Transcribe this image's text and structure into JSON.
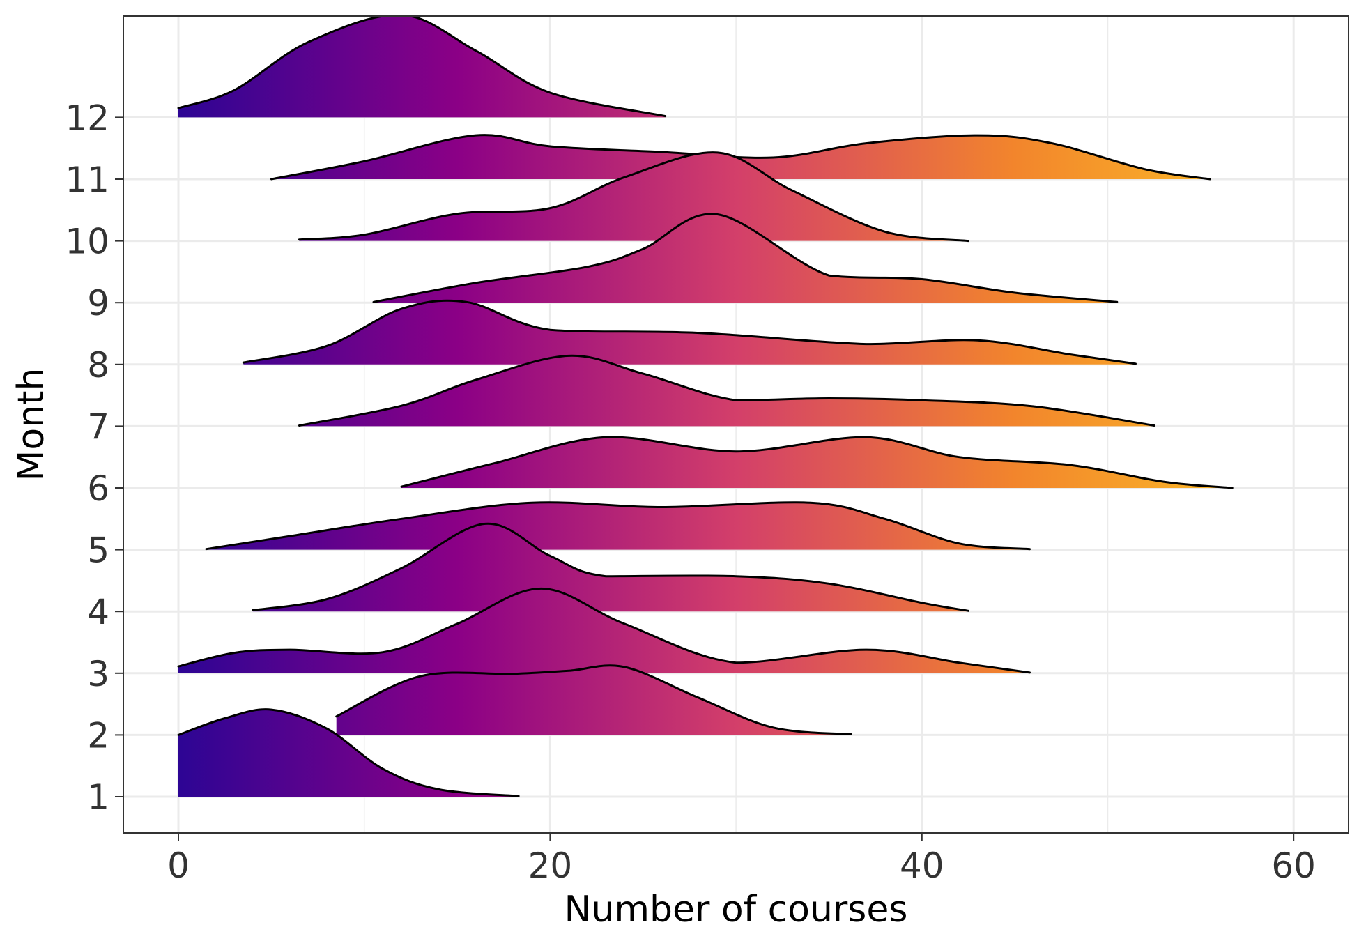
{
  "chart_data": {
    "type": "ridgeline",
    "title": "",
    "xlabel": "Number of courses",
    "ylabel": "Month",
    "xlim": [
      -1.5,
      63
    ],
    "xticks": [
      0,
      20,
      40,
      60
    ],
    "x_minor_ticks": [
      10,
      30,
      50
    ],
    "categories": [
      "1",
      "2",
      "3",
      "4",
      "5",
      "6",
      "7",
      "8",
      "9",
      "10",
      "11",
      "12"
    ],
    "grid": true,
    "legend": "none",
    "fill_gradient": [
      "#2d0594",
      "#8b0086",
      "#d33f6a",
      "#f2852c",
      "#fdc526"
    ],
    "series": [
      {
        "category": "1",
        "x": [
          0,
          2.5,
          5,
          8,
          11,
          14,
          18.3
        ],
        "density": [
          1.0,
          1.27,
          1.41,
          1.1,
          0.45,
          0.12,
          0.01
        ]
      },
      {
        "category": "2",
        "x": [
          8.5,
          13,
          18,
          21,
          24,
          28,
          32,
          36.2
        ],
        "density": [
          0.3,
          0.95,
          0.99,
          1.04,
          1.1,
          0.6,
          0.12,
          0.01
        ]
      },
      {
        "category": "3",
        "x": [
          0,
          3,
          6,
          11,
          15,
          19.5,
          24,
          30,
          37,
          42,
          45.8
        ],
        "density": [
          0.11,
          0.33,
          0.38,
          0.34,
          0.8,
          1.37,
          0.8,
          0.17,
          0.38,
          0.17,
          0.01
        ]
      },
      {
        "category": "4",
        "x": [
          4,
          8,
          12,
          16.5,
          20,
          23,
          30,
          35,
          40,
          42.5
        ],
        "density": [
          0.02,
          0.2,
          0.7,
          1.42,
          0.9,
          0.57,
          0.57,
          0.45,
          0.14,
          0.01
        ]
      },
      {
        "category": "5",
        "x": [
          1.5,
          6,
          12,
          19,
          26,
          34,
          38,
          42,
          45.8
        ],
        "density": [
          0.01,
          0.22,
          0.5,
          0.76,
          0.69,
          0.76,
          0.5,
          0.1,
          0.01
        ]
      },
      {
        "category": "6",
        "x": [
          12,
          17,
          23,
          30,
          37,
          42,
          48,
          53,
          56.7
        ],
        "density": [
          0.02,
          0.4,
          0.82,
          0.59,
          0.82,
          0.5,
          0.37,
          0.1,
          0.0
        ]
      },
      {
        "category": "7",
        "x": [
          6.5,
          12,
          16,
          21,
          25,
          30,
          35,
          40,
          46,
          52.5
        ],
        "density": [
          0.01,
          0.33,
          0.75,
          1.14,
          0.85,
          0.42,
          0.45,
          0.42,
          0.32,
          0.01
        ]
      },
      {
        "category": "8",
        "x": [
          3.5,
          8,
          12,
          15.5,
          20,
          28,
          37,
          43,
          48,
          51.5
        ],
        "density": [
          0.03,
          0.3,
          0.9,
          1.01,
          0.56,
          0.51,
          0.33,
          0.39,
          0.16,
          0.01
        ]
      },
      {
        "category": "9",
        "x": [
          10.5,
          16,
          22,
          25,
          29,
          35,
          40,
          45,
          50.5
        ],
        "density": [
          0.01,
          0.32,
          0.58,
          0.87,
          1.43,
          0.44,
          0.38,
          0.16,
          0.01
        ]
      },
      {
        "category": "10",
        "x": [
          6.5,
          10,
          15,
          20,
          24,
          29,
          33,
          38,
          42.5
        ],
        "density": [
          0.02,
          0.1,
          0.44,
          0.53,
          1.03,
          1.43,
          0.82,
          0.15,
          0.0
        ]
      },
      {
        "category": "11",
        "x": [
          5,
          10,
          16,
          20,
          26,
          32,
          37,
          43,
          47,
          52,
          55.5
        ],
        "density": [
          0.0,
          0.29,
          0.71,
          0.53,
          0.44,
          0.35,
          0.58,
          0.71,
          0.58,
          0.16,
          0.0
        ]
      },
      {
        "category": "12",
        "x": [
          0,
          3,
          7,
          12,
          16,
          20,
          26.2
        ],
        "density": [
          0.15,
          0.44,
          1.22,
          1.66,
          1.08,
          0.4,
          0.02
        ]
      }
    ]
  }
}
